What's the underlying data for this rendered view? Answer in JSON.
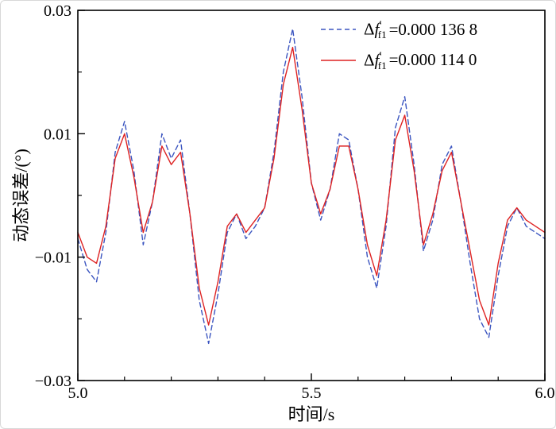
{
  "figure": {
    "background": "#ffffff",
    "border_color": "#d8d8d8",
    "frame_color": "#000000"
  },
  "chart_data": {
    "type": "line",
    "title": "",
    "xlabel": "时间/s",
    "ylabel": "动态误差/(°)",
    "xlim": [
      5.0,
      6.0
    ],
    "ylim": [
      -0.03,
      0.03
    ],
    "grid": false,
    "legend_position": "top-right-inside",
    "x_ticks": [
      {
        "value": 5.0,
        "label": "5.0"
      },
      {
        "value": 5.5,
        "label": "5.5"
      },
      {
        "value": 6.0,
        "label": "6.0"
      }
    ],
    "x_minor_step": 0.1,
    "y_ticks": [
      {
        "value": 0.03,
        "label": "0.03"
      },
      {
        "value": 0.01,
        "label": "0.01"
      },
      {
        "value": -0.01,
        "label": "−0.01"
      },
      {
        "value": -0.03,
        "label": "−0.03"
      }
    ],
    "y_minor_step": 0.01,
    "x": [
      5.0,
      5.02,
      5.04,
      5.06,
      5.08,
      5.1,
      5.12,
      5.14,
      5.16,
      5.18,
      5.2,
      5.22,
      5.24,
      5.26,
      5.28,
      5.3,
      5.32,
      5.34,
      5.36,
      5.38,
      5.4,
      5.42,
      5.44,
      5.46,
      5.48,
      5.5,
      5.52,
      5.54,
      5.56,
      5.58,
      5.6,
      5.62,
      5.64,
      5.66,
      5.68,
      5.7,
      5.72,
      5.74,
      5.76,
      5.78,
      5.8,
      5.82,
      5.84,
      5.86,
      5.88,
      5.9,
      5.92,
      5.94,
      5.96,
      5.98,
      6.0
    ],
    "series": [
      {
        "name": "Δf′f1 =0.000 136 8",
        "color": "#3b55c0",
        "line_style": "dashed",
        "values": [
          -0.007,
          -0.012,
          -0.014,
          -0.006,
          0.007,
          0.012,
          0.004,
          -0.008,
          -0.001,
          0.01,
          0.006,
          0.009,
          -0.003,
          -0.017,
          -0.024,
          -0.016,
          -0.006,
          -0.003,
          -0.007,
          -0.005,
          -0.002,
          0.007,
          0.02,
          0.027,
          0.016,
          0.002,
          -0.004,
          0.001,
          0.01,
          0.009,
          0.001,
          -0.01,
          -0.015,
          -0.005,
          0.011,
          0.016,
          0.005,
          -0.009,
          -0.004,
          0.005,
          0.008,
          -0.001,
          -0.011,
          -0.02,
          -0.023,
          -0.013,
          -0.005,
          -0.002,
          -0.005,
          -0.006,
          -0.007
        ]
      },
      {
        "name": "Δf′f1 =0.000 114 0",
        "color": "#de2222",
        "line_style": "solid",
        "values": [
          -0.006,
          -0.01,
          -0.011,
          -0.005,
          0.006,
          0.01,
          0.003,
          -0.006,
          -0.001,
          0.008,
          0.005,
          0.007,
          -0.003,
          -0.015,
          -0.021,
          -0.014,
          -0.005,
          -0.003,
          -0.006,
          -0.004,
          -0.002,
          0.006,
          0.018,
          0.024,
          0.014,
          0.002,
          -0.003,
          0.001,
          0.008,
          0.008,
          0.001,
          -0.008,
          -0.013,
          -0.004,
          0.009,
          0.013,
          0.004,
          -0.008,
          -0.003,
          0.004,
          0.007,
          -0.001,
          -0.009,
          -0.017,
          -0.021,
          -0.011,
          -0.004,
          -0.002,
          -0.004,
          -0.005,
          -0.006
        ]
      }
    ],
    "legend": [
      {
        "delta": "Δ",
        "symbol": "f",
        "prime": "′",
        "subscript": "f1",
        "value": "=0.000 136 8"
      },
      {
        "delta": "Δ",
        "symbol": "f",
        "prime": "′",
        "subscript": "f1",
        "value": "=0.000 114 0"
      }
    ]
  }
}
